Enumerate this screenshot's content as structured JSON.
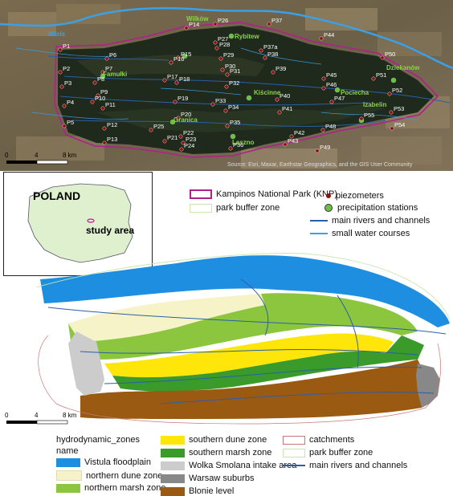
{
  "top_map": {
    "attribution": "Source: Esri, Maxar, Earthstar Geographics, and the GIS User Community",
    "place_labels": [
      "Wilków",
      "Rybitew",
      "Famułki",
      "Kiścinne",
      "Pociecha",
      "Izabelin",
      "Granica",
      "Leszno",
      "Dziekanów",
      "Wisła"
    ],
    "piezometers": [
      "P1",
      "P2",
      "P3",
      "P4",
      "P5",
      "P6",
      "P7",
      "P8",
      "P9",
      "P10",
      "P11",
      "P12",
      "P13",
      "P14",
      "P15",
      "P16",
      "P17",
      "P18",
      "P19",
      "P20",
      "P21",
      "P22",
      "P23",
      "P24",
      "P25",
      "P26",
      "P27",
      "P28",
      "P29",
      "P30",
      "P31",
      "P32",
      "P33",
      "P34",
      "P35",
      "P36",
      "P37",
      "P37a",
      "P38",
      "P39",
      "P40",
      "P41",
      "P42",
      "P43",
      "P44",
      "P45",
      "P46",
      "P47",
      "P48",
      "P49",
      "P50",
      "P51",
      "P52",
      "P53",
      "P54",
      "P55"
    ],
    "scalebar": {
      "ticks": [
        "0",
        "4",
        "8 km"
      ]
    }
  },
  "inset": {
    "country": "POLAND",
    "study_area": "study area"
  },
  "legend_top": {
    "knp": "Kampinos National Park (KNP)",
    "buffer": "park buffer zone",
    "piezometers": "piezometers",
    "precip": "precipitation stations",
    "main_rivers": "main rivers and channels",
    "small_water": "small water courses"
  },
  "bottom_map": {
    "scalebar": {
      "ticks": [
        "0",
        "4",
        "8 km"
      ]
    }
  },
  "legend_bottom": {
    "title": "hydrodynamic_zones",
    "subtitle": "name",
    "items": [
      {
        "label": "Vistula floodplain",
        "color": "#1e8fe0"
      },
      {
        "label": "northern dune zone",
        "color": "#f7f3c8"
      },
      {
        "label": "northern marsh zone",
        "color": "#8cc63f"
      },
      {
        "label": "southern dune zone",
        "color": "#ffe60a"
      },
      {
        "label": "southern marsh zone",
        "color": "#3a9a2a"
      },
      {
        "label": "Wolka Smolana intake area",
        "color": "#cccccc"
      },
      {
        "label": "Warsaw suburbs",
        "color": "#888888"
      },
      {
        "label": "Blonie level",
        "color": "#9a5a12"
      }
    ],
    "catchments": "catchments",
    "park_buffer": "park buffer zone",
    "main_rivers": "main rivers and channels"
  },
  "colors": {
    "knp_border": "#b0208a",
    "piezometer": "#8a1010",
    "precip": "#6cc04a",
    "river": "#2a5fa8",
    "small_water": "#3aa0e8"
  }
}
